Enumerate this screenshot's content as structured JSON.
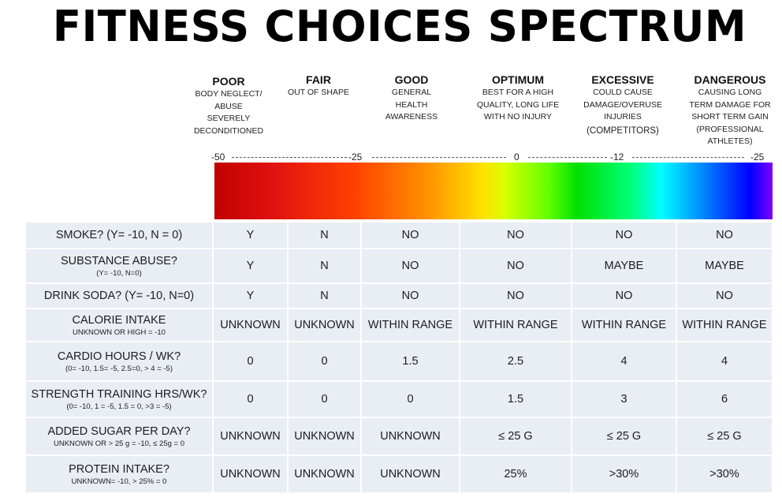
{
  "title": "FITNESS CHOICES SPECTRUM",
  "categories": [
    {
      "name": "POOR",
      "desc": [
        "BODY NEGLECT/",
        "ABUSE",
        "SEVERELY",
        "DECONDITIONED"
      ]
    },
    {
      "name": "FAIR",
      "desc": [
        "OUT OF SHAPE"
      ]
    },
    {
      "name": "GOOD",
      "desc": [
        "GENERAL",
        "HEALTH",
        "AWARENESS"
      ]
    },
    {
      "name": "OPTIMUM",
      "desc": [
        "BEST FOR A HIGH",
        "QUALITY, LONG LIFE",
        "WITH NO INJURY"
      ]
    },
    {
      "name": "EXCESSIVE",
      "desc": [
        "COULD CAUSE",
        "DAMAGE/OVERUSE",
        "INJURIES",
        "(COMPETITORS)"
      ]
    },
    {
      "name": "DANGEROUS",
      "desc": [
        "CAUSING LONG",
        "TERM DAMAGE FOR",
        "SHORT TERM GAIN",
        "(PROFESSIONAL",
        "ATHLETES)"
      ]
    }
  ],
  "scale_labels": [
    "-50",
    "-25",
    "0",
    "-12",
    "-25"
  ],
  "gradient_colors": [
    "#c00000",
    "#ff9000",
    "#ffe000",
    "#00e000",
    "#00ffff",
    "#0000ff",
    "#7f00ff"
  ],
  "rows": [
    {
      "label": "SMOKE? (Y= -10, N = 0)",
      "sub": "",
      "values": [
        "Y",
        "N",
        "NO",
        "NO",
        "NO",
        "NO"
      ]
    },
    {
      "label": "SUBSTANCE ABUSE?",
      "sub": "(Y= -10, N=0)",
      "values": [
        "Y",
        "N",
        "NO",
        "NO",
        "MAYBE",
        "MAYBE"
      ]
    },
    {
      "label": "DRINK SODA? (Y= -10, N=0)",
      "sub": "",
      "values": [
        "Y",
        "N",
        "NO",
        "NO",
        "NO",
        "NO"
      ]
    },
    {
      "label": "CALORIE INTAKE",
      "sub": "UNKNOWN OR HIGH = -10",
      "values": [
        "UNKNOWN",
        "UNKNOWN",
        "WITHIN RANGE",
        "WITHIN RANGE",
        "WITHIN RANGE",
        "WITHIN RANGE"
      ]
    },
    {
      "label": "CARDIO HOURS / WK?",
      "sub": "(0= -10, 1.5= -5, 2.5=0, > 4 = -5)",
      "values": [
        "0",
        "0",
        "1.5",
        "2.5",
        "4",
        "4"
      ]
    },
    {
      "label": "STRENGTH TRAINING HRS/WK?",
      "sub": "(0= -10, 1 = -5, 1.5 = 0, >3 = -5)",
      "values": [
        "0",
        "0",
        "0",
        "1.5",
        "3",
        "6"
      ]
    },
    {
      "label": "ADDED SUGAR PER DAY?",
      "sub": "UNKNOWN OR > 25 g = -10, ≤ 25g = 0",
      "values": [
        "UNKNOWN",
        "UNKNOWN",
        "UNKNOWN",
        "≤ 25 G",
        "≤ 25 G",
        "≤ 25 G"
      ]
    },
    {
      "label": "PROTEIN INTAKE?",
      "sub": "UNKNOWN= -10, > 25% = 0",
      "values": [
        "UNKNOWN",
        "UNKNOWN",
        "UNKNOWN",
        "25%",
        ">30%",
        ">30%"
      ]
    }
  ]
}
